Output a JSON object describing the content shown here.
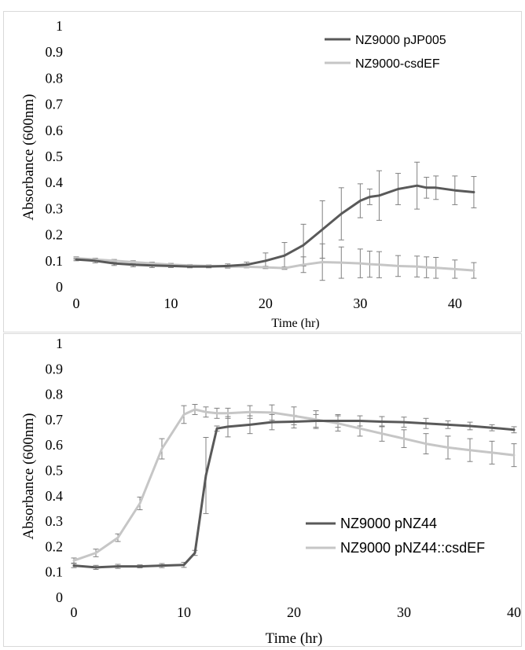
{
  "chart_data": [
    {
      "type": "line",
      "title": "",
      "xlabel": "Time (hr)",
      "ylabel": "Absorbance (600nm)",
      "xlim": [
        0,
        44
      ],
      "ylim": [
        0,
        1
      ],
      "x_ticks": [
        "0",
        "10",
        "20",
        "30",
        "40"
      ],
      "y_ticks": [
        "0",
        "0.1",
        "0.2",
        "0.3",
        "0.4",
        "0.5",
        "0.6",
        "0.7",
        "0.8",
        "0.9",
        "1"
      ],
      "grid": false,
      "legend_position": "top-right",
      "x": [
        0,
        2,
        4,
        6,
        8,
        10,
        12,
        14,
        16,
        18,
        20,
        22,
        24,
        26,
        28,
        30,
        31,
        32,
        34,
        36,
        37,
        38,
        40,
        42
      ],
      "series": [
        {
          "name": "NZ9000 pJP005",
          "color": "#595959",
          "values": [
            0.105,
            0.1,
            0.09,
            0.085,
            0.082,
            0.08,
            0.078,
            0.078,
            0.08,
            0.085,
            0.1,
            0.12,
            0.16,
            0.22,
            0.28,
            0.33,
            0.345,
            0.35,
            0.375,
            0.388,
            0.38,
            0.38,
            0.37,
            0.363
          ],
          "error": [
            0.005,
            0.008,
            0.008,
            0.008,
            0.008,
            0.006,
            0.005,
            0.005,
            0.008,
            0.01,
            0.03,
            0.05,
            0.08,
            0.11,
            0.1,
            0.065,
            0.03,
            0.095,
            0.06,
            0.09,
            0.04,
            0.045,
            0.055,
            0.06
          ]
        },
        {
          "name": "NZ9000-csdEF",
          "color": "#c6c6c6",
          "values": [
            0.11,
            0.105,
            0.1,
            0.095,
            0.09,
            0.085,
            0.082,
            0.08,
            0.078,
            0.077,
            0.075,
            0.072,
            0.085,
            0.095,
            0.093,
            0.09,
            0.087,
            0.085,
            0.08,
            0.078,
            0.075,
            0.073,
            0.068,
            0.063
          ],
          "error": [
            0.005,
            0.005,
            0.005,
            0.005,
            0.005,
            0.005,
            0.004,
            0.004,
            0.004,
            0.004,
            0.004,
            0.005,
            0.03,
            0.07,
            0.06,
            0.055,
            0.05,
            0.05,
            0.04,
            0.04,
            0.04,
            0.04,
            0.035,
            0.03
          ]
        }
      ]
    },
    {
      "type": "line",
      "title": "",
      "xlabel": "Time (hr)",
      "ylabel": "Absorbance (600nm)",
      "xlim": [
        0,
        40
      ],
      "ylim": [
        0,
        1
      ],
      "x_ticks": [
        "0",
        "10",
        "20",
        "30",
        "40"
      ],
      "y_ticks": [
        "0",
        "0.1",
        "0.2",
        "0.3",
        "0.4",
        "0.5",
        "0.6",
        "0.7",
        "0.8",
        "0.9",
        "1"
      ],
      "grid": false,
      "legend_position": "bottom-right",
      "x": [
        0,
        2,
        4,
        6,
        8,
        10,
        11,
        12,
        13,
        14,
        16,
        18,
        20,
        22,
        24,
        26,
        28,
        30,
        32,
        34,
        36,
        38,
        40
      ],
      "series": [
        {
          "name": "NZ9000 pNZ44",
          "color": "#595959",
          "values": [
            0.125,
            0.118,
            0.122,
            0.122,
            0.125,
            0.128,
            0.175,
            0.48,
            0.665,
            0.672,
            0.68,
            0.69,
            0.692,
            0.695,
            0.695,
            0.695,
            0.692,
            0.69,
            0.685,
            0.68,
            0.675,
            0.668,
            0.66
          ],
          "error": [
            0.008,
            0.008,
            0.008,
            0.006,
            0.008,
            0.01,
            0.01,
            0.15,
            0.01,
            0.04,
            0.035,
            0.03,
            0.025,
            0.025,
            0.025,
            0.02,
            0.02,
            0.02,
            0.02,
            0.015,
            0.015,
            0.012,
            0.012
          ]
        },
        {
          "name": "NZ9000 pNZ44::csdEF",
          "color": "#c6c6c6",
          "values": [
            0.145,
            0.175,
            0.235,
            0.37,
            0.585,
            0.72,
            0.74,
            0.73,
            0.725,
            0.725,
            0.73,
            0.728,
            0.715,
            0.7,
            0.685,
            0.665,
            0.645,
            0.625,
            0.605,
            0.59,
            0.58,
            0.57,
            0.56
          ],
          "error": [
            0.01,
            0.015,
            0.015,
            0.025,
            0.04,
            0.035,
            0.02,
            0.02,
            0.02,
            0.02,
            0.025,
            0.03,
            0.035,
            0.035,
            0.03,
            0.03,
            0.03,
            0.035,
            0.04,
            0.045,
            0.045,
            0.045,
            0.045
          ]
        }
      ]
    }
  ]
}
